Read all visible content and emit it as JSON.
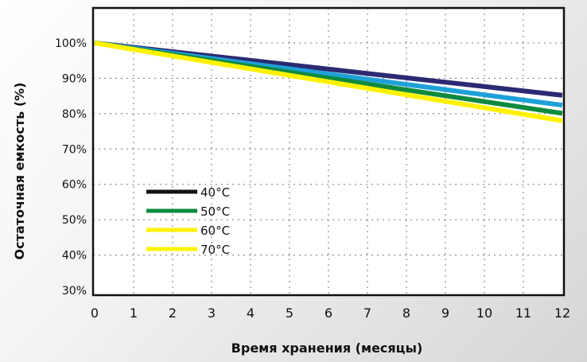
{
  "chart_data": {
    "type": "line",
    "title": "",
    "xlabel": "Время хранения (месяцы)",
    "ylabel": "Остаточная емкость (%)",
    "x": [
      0,
      1,
      2,
      3,
      4,
      5,
      6,
      7,
      8,
      9,
      10,
      11,
      12
    ],
    "x_tick_labels": [
      "0",
      "1",
      "2",
      "3",
      "4",
      "5",
      "6",
      "7",
      "8",
      "9",
      "10",
      "11",
      "12"
    ],
    "y_ticks": [
      30,
      40,
      50,
      60,
      70,
      80,
      90,
      100
    ],
    "y_tick_labels": [
      "30%",
      "40%",
      "50%",
      "60%",
      "70%",
      "80%",
      "90%",
      "100%"
    ],
    "xlim": [
      0,
      12
    ],
    "ylim": [
      28,
      110
    ],
    "grid": true,
    "legend_position": "lower-left",
    "series": [
      {
        "name": "40°C",
        "legend_color": "#111111",
        "line_color": "#2b2a72",
        "values": [
          100,
          98.77,
          97.53,
          96.3,
          95.07,
          93.83,
          92.6,
          91.37,
          90.13,
          88.9,
          87.67,
          86.43,
          85.2
        ]
      },
      {
        "name": "50°C",
        "legend_color": "#0e8a3e",
        "line_color": "#1ea0d8",
        "values": [
          100,
          98.53,
          97.07,
          95.6,
          94.13,
          92.67,
          91.2,
          89.73,
          88.27,
          86.8,
          85.33,
          83.87,
          82.4
        ]
      },
      {
        "name": "60°C",
        "legend_color": "#fff200",
        "line_color": "#0e8a3e",
        "values": [
          100,
          98.34,
          96.68,
          95.03,
          93.37,
          91.71,
          90.05,
          88.39,
          86.73,
          85.08,
          83.42,
          81.76,
          80.1
        ]
      },
      {
        "name": "70°C",
        "legend_color": "#fff200",
        "line_color": "#fff200",
        "values": [
          100,
          98.17,
          96.33,
          94.5,
          92.67,
          90.83,
          89.0,
          87.17,
          85.33,
          83.5,
          81.67,
          79.83,
          78.0
        ]
      }
    ]
  }
}
